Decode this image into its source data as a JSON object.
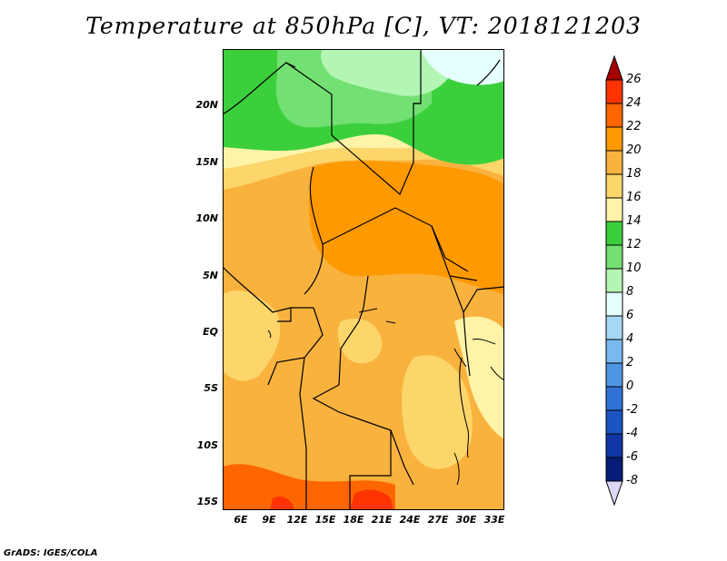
{
  "title": "Temperature at 850hPa [C], VT: 2018121203",
  "footer": "GrADS: IGES/COLA",
  "y_axis": [
    "20N",
    "15N",
    "10N",
    "5N",
    "EQ",
    "5S",
    "10S",
    "15S"
  ],
  "x_axis": [
    "6E",
    "9E",
    "12E",
    "15E",
    "18E",
    "21E",
    "24E",
    "27E",
    "30E",
    "33E"
  ],
  "colorbar": {
    "labels": [
      "26",
      "24",
      "22",
      "20",
      "18",
      "16",
      "14",
      "12",
      "10",
      "8",
      "6",
      "4",
      "2",
      "0",
      "-2",
      "-4",
      "-6",
      "-8"
    ],
    "colors": [
      "#a50000",
      "#ff3300",
      "#ff6600",
      "#ff9900",
      "#f9b23e",
      "#fcd66a",
      "#fff3a8",
      "#3ccf3c",
      "#72e072",
      "#b3f5b3",
      "#e5ffff",
      "#a6d8f5",
      "#7ab8f0",
      "#4f95e5",
      "#2f72d6",
      "#1b55c2",
      "#0f35a6",
      "#071c78",
      "#ffffff"
    ]
  },
  "map_colors": {
    "green_dark": "#3ccf3c",
    "green_mid": "#72e072",
    "green_light": "#b3f5b3",
    "cyan": "#e5ffff",
    "yellow_light": "#fff3a8",
    "yellow": "#fcd66a",
    "orange_light": "#f9b23e",
    "orange": "#ff9900",
    "orange_dark": "#ff6600",
    "red": "#ff3300"
  }
}
